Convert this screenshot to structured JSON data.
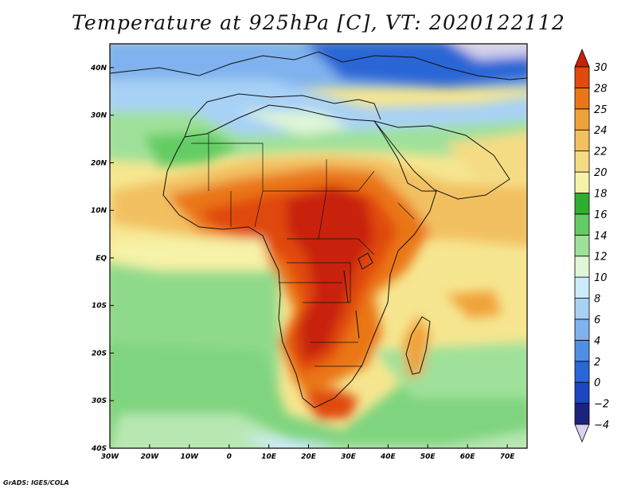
{
  "title": "Temperature at 925hPa [C], VT: 2020122112",
  "credit": "GrADS: IGES/COLA",
  "chart_data": {
    "type": "heatmap",
    "variable": "Temperature at 925hPa",
    "units": "C",
    "valid_time": "2020122112",
    "map_region": "Africa",
    "xlim": [
      -30,
      75
    ],
    "ylim": [
      -40,
      45
    ],
    "x_ticks": [
      "30W",
      "20W",
      "10W",
      "0",
      "10E",
      "20E",
      "30E",
      "40E",
      "50E",
      "60E",
      "70E"
    ],
    "y_ticks": [
      "40N",
      "30N",
      "20N",
      "10N",
      "EQ",
      "10S",
      "20S",
      "30S",
      "40S"
    ],
    "colorbar_levels": [
      -4,
      -2,
      0,
      2,
      4,
      6,
      8,
      10,
      12,
      14,
      16,
      18,
      20,
      22,
      24,
      25,
      28,
      30
    ],
    "colorbar_labels": [
      "30",
      "28",
      "25",
      "24",
      "22",
      "20",
      "18",
      "16",
      "14",
      "12",
      "10",
      "8",
      "6",
      "4",
      "2",
      "0",
      "−2",
      "−4"
    ],
    "colorbar_colors": [
      "#d6d2ef",
      "#1a237e",
      "#1e46c0",
      "#2a66d6",
      "#4f8fe4",
      "#7fb2ee",
      "#a8d1f6",
      "#cdebfa",
      "#dff6d7",
      "#9fe19a",
      "#64cc64",
      "#2fae2f",
      "#f6f2a8",
      "#f5dc84",
      "#f2c060",
      "#f0a23a",
      "#ea7618",
      "#e04a0c",
      "#c8200a"
    ],
    "grid": false,
    "colorbar_position": "right"
  }
}
